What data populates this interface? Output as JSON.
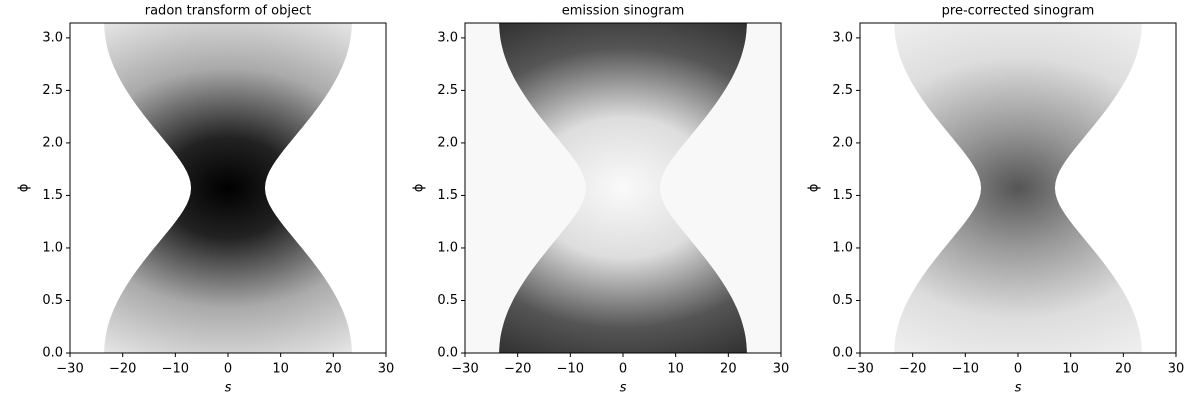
{
  "chart_data": [
    {
      "type": "image",
      "title": "radon transform of object",
      "xlabel": "s",
      "ylabel": "ϕ",
      "xlim": [
        -30,
        30
      ],
      "ylim": [
        0,
        3.14159
      ],
      "xticks": [
        {
          "value": -30,
          "label": "−30"
        },
        {
          "value": -20,
          "label": "−20"
        },
        {
          "value": -10,
          "label": "−10"
        },
        0,
        10,
        20,
        30
      ],
      "yticks": [
        {
          "value": 0,
          "label": "0.0"
        },
        0.5,
        {
          "value": 1,
          "label": "1.0"
        },
        1.5,
        {
          "value": 2,
          "label": "2.0"
        },
        2.5,
        {
          "value": 3,
          "label": "3.0"
        }
      ]
    },
    {
      "type": "image",
      "title": "emission sinogram",
      "xlabel": "s",
      "ylabel": "ϕ",
      "xlim": [
        -30,
        30
      ],
      "ylim": [
        0,
        3.14159
      ],
      "xticks": [
        {
          "value": -30,
          "label": "−30"
        },
        {
          "value": -20,
          "label": "−20"
        },
        {
          "value": -10,
          "label": "−10"
        },
        0,
        10,
        20,
        30
      ],
      "yticks": [
        {
          "value": 0,
          "label": "0.0"
        },
        0.5,
        {
          "value": 1,
          "label": "1.0"
        },
        1.5,
        {
          "value": 2,
          "label": "2.0"
        },
        2.5,
        {
          "value": 3,
          "label": "3.0"
        }
      ]
    },
    {
      "type": "image",
      "title": "pre-corrected sinogram",
      "xlabel": "s",
      "ylabel": "ϕ",
      "xlim": [
        -30,
        30
      ],
      "ylim": [
        0,
        3.14159
      ],
      "xticks": [
        {
          "value": -30,
          "label": "−30"
        },
        {
          "value": -20,
          "label": "−20"
        },
        {
          "value": -10,
          "label": "−10"
        },
        0,
        10,
        20,
        30
      ],
      "yticks": [
        {
          "value": 0,
          "label": "0.0"
        },
        0.5,
        {
          "value": 1,
          "label": "1.0"
        },
        1.5,
        {
          "value": 2,
          "label": "2.0"
        },
        2.5,
        {
          "value": 3,
          "label": "3.0"
        }
      ]
    }
  ]
}
